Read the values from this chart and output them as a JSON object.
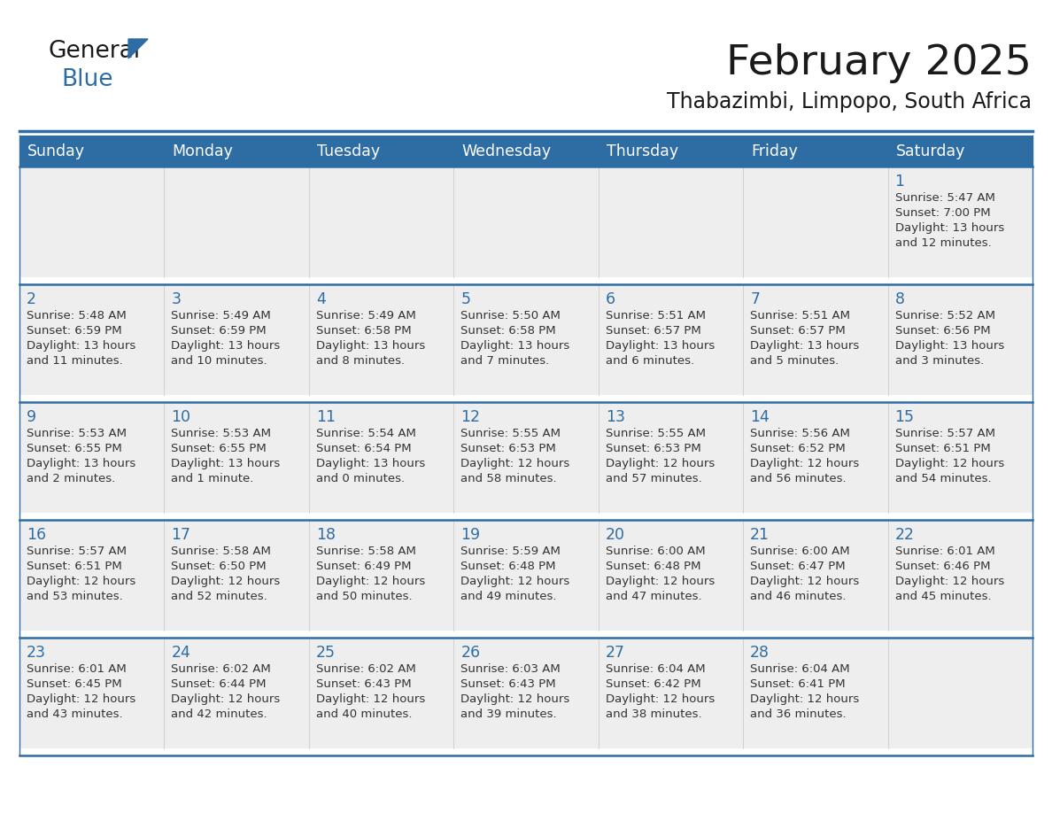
{
  "title": "February 2025",
  "subtitle": "Thabazimbi, Limpopo, South Africa",
  "header_color": "#2E6DA4",
  "header_text_color": "#FFFFFF",
  "cell_bg_color": "#EEEEEE",
  "border_color": "#2E6DA4",
  "row_gap_color": "#FFFFFF",
  "day_headers": [
    "Sunday",
    "Monday",
    "Tuesday",
    "Wednesday",
    "Thursday",
    "Friday",
    "Saturday"
  ],
  "days": [
    {
      "day": 1,
      "col": 6,
      "row": 0,
      "sunrise": "5:47 AM",
      "sunset": "7:00 PM",
      "daylight": "13 hours and 12 minutes."
    },
    {
      "day": 2,
      "col": 0,
      "row": 1,
      "sunrise": "5:48 AM",
      "sunset": "6:59 PM",
      "daylight": "13 hours and 11 minutes."
    },
    {
      "day": 3,
      "col": 1,
      "row": 1,
      "sunrise": "5:49 AM",
      "sunset": "6:59 PM",
      "daylight": "13 hours and 10 minutes."
    },
    {
      "day": 4,
      "col": 2,
      "row": 1,
      "sunrise": "5:49 AM",
      "sunset": "6:58 PM",
      "daylight": "13 hours and 8 minutes."
    },
    {
      "day": 5,
      "col": 3,
      "row": 1,
      "sunrise": "5:50 AM",
      "sunset": "6:58 PM",
      "daylight": "13 hours and 7 minutes."
    },
    {
      "day": 6,
      "col": 4,
      "row": 1,
      "sunrise": "5:51 AM",
      "sunset": "6:57 PM",
      "daylight": "13 hours and 6 minutes."
    },
    {
      "day": 7,
      "col": 5,
      "row": 1,
      "sunrise": "5:51 AM",
      "sunset": "6:57 PM",
      "daylight": "13 hours and 5 minutes."
    },
    {
      "day": 8,
      "col": 6,
      "row": 1,
      "sunrise": "5:52 AM",
      "sunset": "6:56 PM",
      "daylight": "13 hours and 3 minutes."
    },
    {
      "day": 9,
      "col": 0,
      "row": 2,
      "sunrise": "5:53 AM",
      "sunset": "6:55 PM",
      "daylight": "13 hours and 2 minutes."
    },
    {
      "day": 10,
      "col": 1,
      "row": 2,
      "sunrise": "5:53 AM",
      "sunset": "6:55 PM",
      "daylight": "13 hours and 1 minute."
    },
    {
      "day": 11,
      "col": 2,
      "row": 2,
      "sunrise": "5:54 AM",
      "sunset": "6:54 PM",
      "daylight": "13 hours and 0 minutes."
    },
    {
      "day": 12,
      "col": 3,
      "row": 2,
      "sunrise": "5:55 AM",
      "sunset": "6:53 PM",
      "daylight": "12 hours and 58 minutes."
    },
    {
      "day": 13,
      "col": 4,
      "row": 2,
      "sunrise": "5:55 AM",
      "sunset": "6:53 PM",
      "daylight": "12 hours and 57 minutes."
    },
    {
      "day": 14,
      "col": 5,
      "row": 2,
      "sunrise": "5:56 AM",
      "sunset": "6:52 PM",
      "daylight": "12 hours and 56 minutes."
    },
    {
      "day": 15,
      "col": 6,
      "row": 2,
      "sunrise": "5:57 AM",
      "sunset": "6:51 PM",
      "daylight": "12 hours and 54 minutes."
    },
    {
      "day": 16,
      "col": 0,
      "row": 3,
      "sunrise": "5:57 AM",
      "sunset": "6:51 PM",
      "daylight": "12 hours and 53 minutes."
    },
    {
      "day": 17,
      "col": 1,
      "row": 3,
      "sunrise": "5:58 AM",
      "sunset": "6:50 PM",
      "daylight": "12 hours and 52 minutes."
    },
    {
      "day": 18,
      "col": 2,
      "row": 3,
      "sunrise": "5:58 AM",
      "sunset": "6:49 PM",
      "daylight": "12 hours and 50 minutes."
    },
    {
      "day": 19,
      "col": 3,
      "row": 3,
      "sunrise": "5:59 AM",
      "sunset": "6:48 PM",
      "daylight": "12 hours and 49 minutes."
    },
    {
      "day": 20,
      "col": 4,
      "row": 3,
      "sunrise": "6:00 AM",
      "sunset": "6:48 PM",
      "daylight": "12 hours and 47 minutes."
    },
    {
      "day": 21,
      "col": 5,
      "row": 3,
      "sunrise": "6:00 AM",
      "sunset": "6:47 PM",
      "daylight": "12 hours and 46 minutes."
    },
    {
      "day": 22,
      "col": 6,
      "row": 3,
      "sunrise": "6:01 AM",
      "sunset": "6:46 PM",
      "daylight": "12 hours and 45 minutes."
    },
    {
      "day": 23,
      "col": 0,
      "row": 4,
      "sunrise": "6:01 AM",
      "sunset": "6:45 PM",
      "daylight": "12 hours and 43 minutes."
    },
    {
      "day": 24,
      "col": 1,
      "row": 4,
      "sunrise": "6:02 AM",
      "sunset": "6:44 PM",
      "daylight": "12 hours and 42 minutes."
    },
    {
      "day": 25,
      "col": 2,
      "row": 4,
      "sunrise": "6:02 AM",
      "sunset": "6:43 PM",
      "daylight": "12 hours and 40 minutes."
    },
    {
      "day": 26,
      "col": 3,
      "row": 4,
      "sunrise": "6:03 AM",
      "sunset": "6:43 PM",
      "daylight": "12 hours and 39 minutes."
    },
    {
      "day": 27,
      "col": 4,
      "row": 4,
      "sunrise": "6:04 AM",
      "sunset": "6:42 PM",
      "daylight": "12 hours and 38 minutes."
    },
    {
      "day": 28,
      "col": 5,
      "row": 4,
      "sunrise": "6:04 AM",
      "sunset": "6:41 PM",
      "daylight": "12 hours and 36 minutes."
    }
  ],
  "num_rows": 5,
  "num_cols": 7,
  "logo_color1": "#1a1a1a",
  "logo_color2": "#2E6DA4",
  "logo_triangle_color": "#2E6DA4"
}
